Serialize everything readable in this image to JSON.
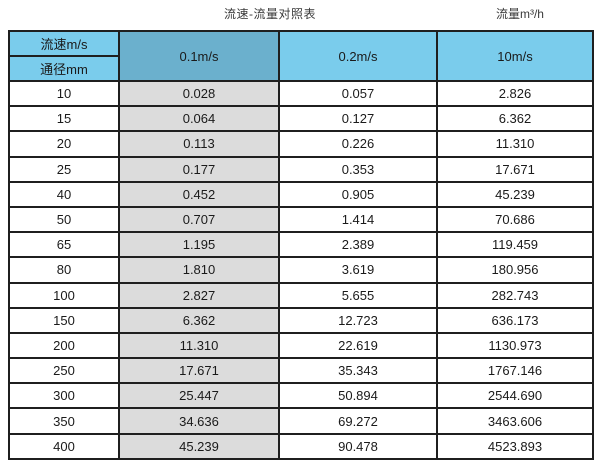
{
  "titles": {
    "left": "流速-流量对照表",
    "right": "流量m³/h"
  },
  "colors": {
    "header_blue": "#7accec",
    "header_blue_dark": "#6bb0cd",
    "column_gray": "#dcdcdc",
    "border": "#1f1f1f",
    "text": "#1a1a1a"
  },
  "table": {
    "corner_top": "流速m/s",
    "corner_bottom": "通径mm",
    "speed_columns": [
      "0.1m/s",
      "0.2m/s",
      "10m/s"
    ],
    "rows": [
      {
        "diameter": "10",
        "values": [
          "0.028",
          "0.057",
          "2.826"
        ]
      },
      {
        "diameter": "15",
        "values": [
          "0.064",
          "0.127",
          "6.362"
        ]
      },
      {
        "diameter": "20",
        "values": [
          "0.113",
          "0.226",
          "11.310"
        ]
      },
      {
        "diameter": "25",
        "values": [
          "0.177",
          "0.353",
          "17.671"
        ]
      },
      {
        "diameter": "40",
        "values": [
          "0.452",
          "0.905",
          "45.239"
        ]
      },
      {
        "diameter": "50",
        "values": [
          "0.707",
          "1.414",
          "70.686"
        ]
      },
      {
        "diameter": "65",
        "values": [
          "1.195",
          "2.389",
          "119.459"
        ]
      },
      {
        "diameter": "80",
        "values": [
          "1.810",
          "3.619",
          "180.956"
        ]
      },
      {
        "diameter": "100",
        "values": [
          "2.827",
          "5.655",
          "282.743"
        ]
      },
      {
        "diameter": "150",
        "values": [
          "6.362",
          "12.723",
          "636.173"
        ]
      },
      {
        "diameter": "200",
        "values": [
          "11.310",
          "22.619",
          "1130.973"
        ]
      },
      {
        "diameter": "250",
        "values": [
          "17.671",
          "35.343",
          "1767.146"
        ]
      },
      {
        "diameter": "300",
        "values": [
          "25.447",
          "50.894",
          "2544.690"
        ]
      },
      {
        "diameter": "350",
        "values": [
          "34.636",
          "69.272",
          "3463.606"
        ]
      },
      {
        "diameter": "400",
        "values": [
          "45.239",
          "90.478",
          "4523.893"
        ]
      }
    ]
  },
  "chart_data": {
    "type": "table",
    "title": "流速-流量对照表",
    "unit_label": "流量m³/h",
    "columns": [
      "通径mm",
      "0.1m/s",
      "0.2m/s",
      "10m/s"
    ],
    "rows": [
      [
        "10",
        "0.028",
        "0.057",
        "2.826"
      ],
      [
        "15",
        "0.064",
        "0.127",
        "6.362"
      ],
      [
        "20",
        "0.113",
        "0.226",
        "11.310"
      ],
      [
        "25",
        "0.177",
        "0.353",
        "17.671"
      ],
      [
        "40",
        "0.452",
        "0.905",
        "45.239"
      ],
      [
        "50",
        "0.707",
        "1.414",
        "70.686"
      ],
      [
        "65",
        "1.195",
        "2.389",
        "119.459"
      ],
      [
        "80",
        "1.810",
        "3.619",
        "180.956"
      ],
      [
        "100",
        "2.827",
        "5.655",
        "282.743"
      ],
      [
        "150",
        "6.362",
        "12.723",
        "636.173"
      ],
      [
        "200",
        "11.310",
        "22.619",
        "1130.973"
      ],
      [
        "250",
        "17.671",
        "35.343",
        "1767.146"
      ],
      [
        "300",
        "25.447",
        "50.894",
        "2544.690"
      ],
      [
        "350",
        "34.636",
        "69.272",
        "3463.606"
      ],
      [
        "400",
        "45.239",
        "90.478",
        "4523.893"
      ]
    ]
  }
}
